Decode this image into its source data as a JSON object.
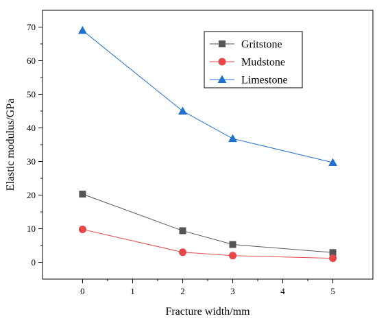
{
  "chart_data": {
    "type": "line",
    "xlabel": "Fracture width/mm",
    "ylabel": "Elastic modulus/GPa",
    "x": [
      0,
      2,
      3,
      5
    ],
    "xlim": [
      -0.8,
      5.8
    ],
    "ylim": [
      -5,
      75
    ],
    "xticks": [
      0,
      1,
      2,
      3,
      4,
      5
    ],
    "yticks": [
      0,
      10,
      20,
      30,
      40,
      50,
      60,
      70
    ],
    "grid": false,
    "legend_position": "top-right",
    "series": [
      {
        "name": "Gritstone",
        "values": [
          20.3,
          9.4,
          5.3,
          2.9
        ],
        "color": "#555555",
        "marker": "square"
      },
      {
        "name": "Mudstone",
        "values": [
          9.8,
          3.0,
          2.0,
          1.2
        ],
        "color": "#e8474a",
        "marker": "circle"
      },
      {
        "name": "Limestone",
        "values": [
          69.0,
          45.0,
          36.8,
          29.7
        ],
        "color": "#2070d0",
        "marker": "triangle"
      }
    ]
  }
}
